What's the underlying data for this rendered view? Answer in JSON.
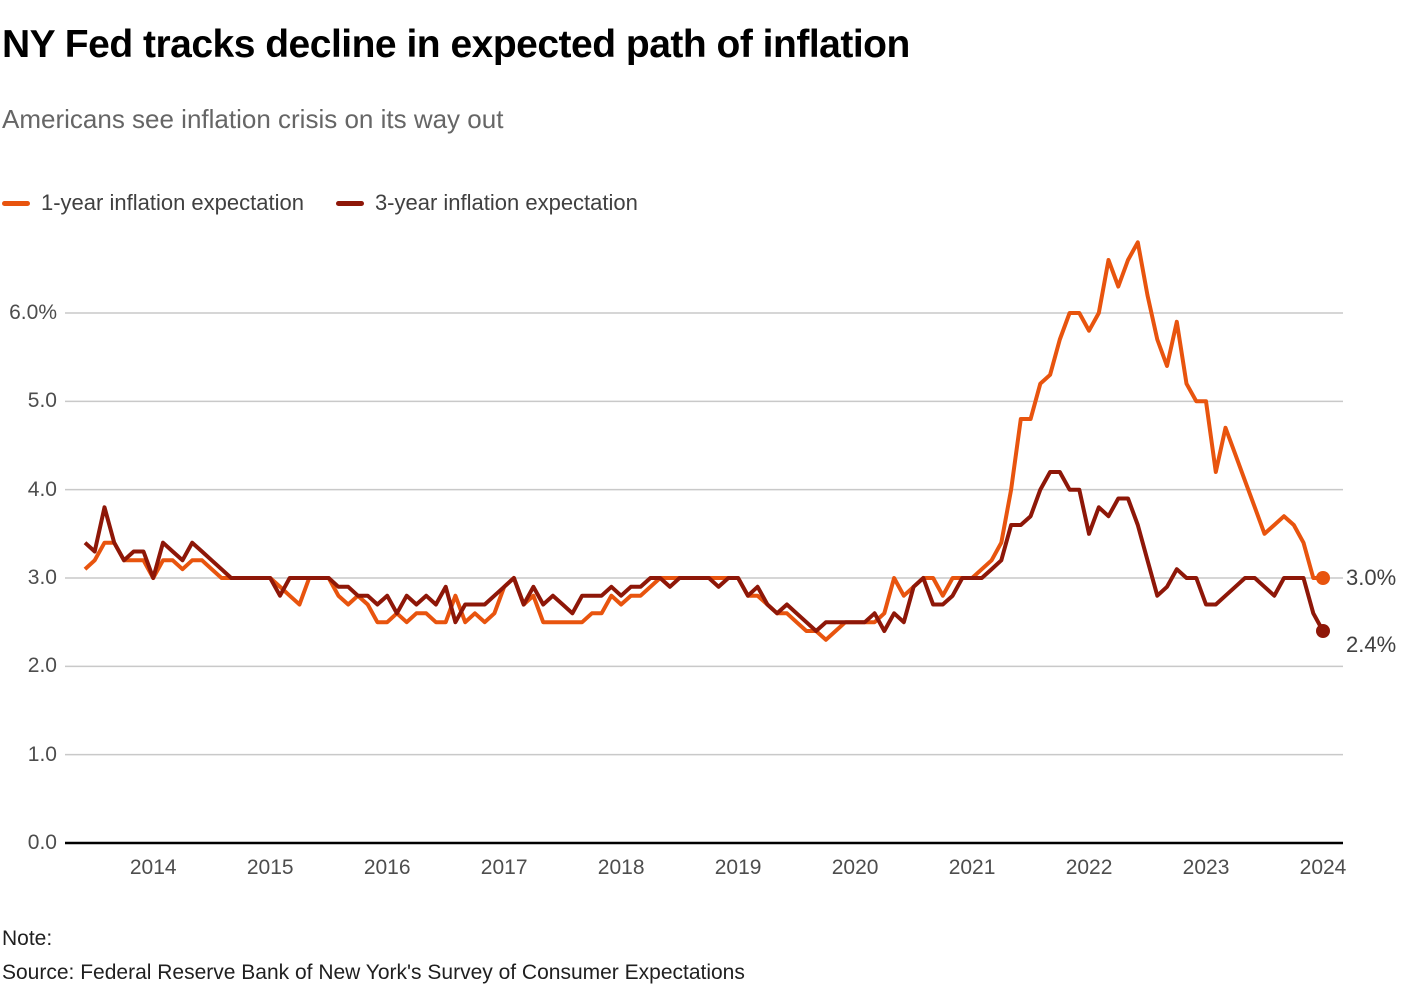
{
  "footer": {
    "note_label": "Note:",
    "source": "Source: Federal Reserve Bank of New York's Survey of Consumer Expectations"
  },
  "legend": [
    {
      "label": "1-year inflation expectation",
      "color": "#E8540E"
    },
    {
      "label": "3-year inflation expectation",
      "color": "#8E1708"
    }
  ],
  "colors": {
    "one_year_line": "#E8540E",
    "three_year_line": "#8E1708",
    "gridline": "#c9c9c9",
    "baseline": "#000000"
  },
  "chart_data": {
    "type": "line",
    "title": "NY Fed tracks decline in expected path of inflation",
    "subtitle": "Americans see inflation crisis on its way out",
    "x_start": "2013-06",
    "x_end": "2024-01",
    "frequency": "monthly",
    "grid": "horizontal",
    "legend_position": "top-left",
    "ylim": [
      0,
      6.8
    ],
    "y_ticks": [
      {
        "value": 0,
        "label": "0.0"
      },
      {
        "value": 1,
        "label": "1.0"
      },
      {
        "value": 2,
        "label": "2.0"
      },
      {
        "value": 3,
        "label": "3.0"
      },
      {
        "value": 4,
        "label": "4.0"
      },
      {
        "value": 5,
        "label": "5.0"
      },
      {
        "value": 6,
        "label": "6.0%"
      }
    ],
    "x_ticks": [
      {
        "label": "2014",
        "month_index": 7
      },
      {
        "label": "2015",
        "month_index": 19
      },
      {
        "label": "2016",
        "month_index": 31
      },
      {
        "label": "2017",
        "month_index": 43
      },
      {
        "label": "2018",
        "month_index": 55
      },
      {
        "label": "2019",
        "month_index": 67
      },
      {
        "label": "2020",
        "month_index": 79
      },
      {
        "label": "2021",
        "month_index": 91
      },
      {
        "label": "2022",
        "month_index": 103
      },
      {
        "label": "2023",
        "month_index": 115
      },
      {
        "label": "2024",
        "month_index": 127
      }
    ],
    "series": [
      {
        "name": "1-year inflation expectation",
        "color": "#E8540E",
        "end_label": "3.0%",
        "values": [
          3.1,
          3.2,
          3.4,
          3.4,
          3.2,
          3.2,
          3.2,
          3.0,
          3.2,
          3.2,
          3.1,
          3.2,
          3.2,
          3.1,
          3.0,
          3.0,
          3.0,
          3.0,
          3.0,
          3.0,
          2.9,
          2.8,
          2.7,
          3.0,
          3.0,
          3.0,
          2.8,
          2.7,
          2.8,
          2.7,
          2.5,
          2.5,
          2.6,
          2.5,
          2.6,
          2.6,
          2.5,
          2.5,
          2.8,
          2.5,
          2.6,
          2.5,
          2.6,
          2.9,
          3.0,
          2.7,
          2.8,
          2.5,
          2.5,
          2.5,
          2.5,
          2.5,
          2.6,
          2.6,
          2.8,
          2.7,
          2.8,
          2.8,
          2.9,
          3.0,
          3.0,
          3.0,
          3.0,
          3.0,
          3.0,
          3.0,
          3.0,
          3.0,
          2.8,
          2.8,
          2.7,
          2.6,
          2.6,
          2.5,
          2.4,
          2.4,
          2.3,
          2.4,
          2.5,
          2.5,
          2.5,
          2.5,
          2.6,
          3.0,
          2.8,
          2.9,
          3.0,
          3.0,
          2.8,
          3.0,
          3.0,
          3.0,
          3.1,
          3.2,
          3.4,
          4.0,
          4.8,
          4.8,
          5.2,
          5.3,
          5.7,
          6.0,
          6.0,
          5.8,
          6.0,
          6.6,
          6.3,
          6.6,
          6.8,
          6.2,
          5.7,
          5.4,
          5.9,
          5.2,
          5.0,
          5.0,
          4.2,
          4.7,
          4.4,
          4.1,
          3.8,
          3.5,
          3.6,
          3.7,
          3.6,
          3.4,
          3.0,
          3.0
        ]
      },
      {
        "name": "3-year inflation expectation",
        "color": "#8E1708",
        "end_label": "2.4%",
        "values": [
          3.4,
          3.3,
          3.8,
          3.4,
          3.2,
          3.3,
          3.3,
          3.0,
          3.4,
          3.3,
          3.2,
          3.4,
          3.3,
          3.2,
          3.1,
          3.0,
          3.0,
          3.0,
          3.0,
          3.0,
          2.8,
          3.0,
          3.0,
          3.0,
          3.0,
          3.0,
          2.9,
          2.9,
          2.8,
          2.8,
          2.7,
          2.8,
          2.6,
          2.8,
          2.7,
          2.8,
          2.7,
          2.9,
          2.5,
          2.7,
          2.7,
          2.7,
          2.8,
          2.9,
          3.0,
          2.7,
          2.9,
          2.7,
          2.8,
          2.7,
          2.6,
          2.8,
          2.8,
          2.8,
          2.9,
          2.8,
          2.9,
          2.9,
          3.0,
          3.0,
          2.9,
          3.0,
          3.0,
          3.0,
          3.0,
          2.9,
          3.0,
          3.0,
          2.8,
          2.9,
          2.7,
          2.6,
          2.7,
          2.6,
          2.5,
          2.4,
          2.5,
          2.5,
          2.5,
          2.5,
          2.5,
          2.6,
          2.4,
          2.6,
          2.5,
          2.9,
          3.0,
          2.7,
          2.7,
          2.8,
          3.0,
          3.0,
          3.0,
          3.1,
          3.2,
          3.6,
          3.6,
          3.7,
          4.0,
          4.2,
          4.2,
          4.0,
          4.0,
          3.5,
          3.8,
          3.7,
          3.9,
          3.9,
          3.6,
          3.2,
          2.8,
          2.9,
          3.1,
          3.0,
          3.0,
          2.7,
          2.7,
          2.8,
          2.9,
          3.0,
          3.0,
          2.9,
          2.8,
          3.0,
          3.0,
          3.0,
          2.6,
          2.4
        ]
      }
    ]
  }
}
